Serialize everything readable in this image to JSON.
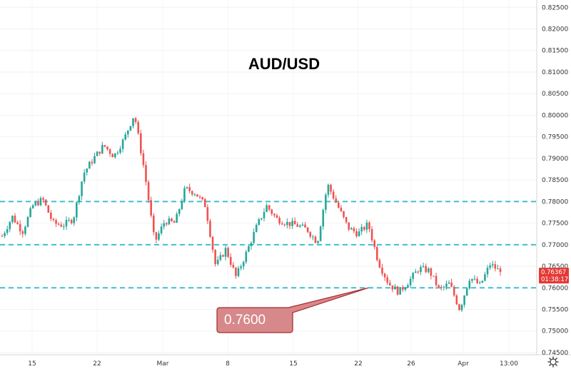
{
  "chart_data": {
    "type": "candlestick",
    "title": "AUD/USD",
    "ylim": [
      0.7445,
      0.8267
    ],
    "y_ticks": [
      "0.82500",
      "0.82000",
      "0.81500",
      "0.81000",
      "0.80500",
      "0.80000",
      "0.79500",
      "0.79000",
      "0.78500",
      "0.78000",
      "0.77500",
      "0.77000",
      "0.76500",
      "0.76000",
      "0.75500",
      "0.75000",
      "0.74500"
    ],
    "x_ticks": [
      "15",
      "22",
      "Mar",
      "8",
      "15",
      "22",
      "26",
      "Apr",
      "13:00"
    ],
    "horizontal_lines": [
      0.78,
      0.77,
      0.76
    ],
    "callout": {
      "text": "0.7600",
      "value": 0.76
    },
    "last_price": {
      "value": "0.76367",
      "countdown": "01:38:17"
    },
    "price_path": [
      {
        "t": "Feb 12",
        "price": 0.772
      },
      {
        "t": "Feb 13",
        "price": 0.7765
      },
      {
        "t": "Feb 15",
        "price": 0.773
      },
      {
        "t": "Feb 16",
        "price": 0.779
      },
      {
        "t": "Feb 17",
        "price": 0.7805
      },
      {
        "t": "Feb 18",
        "price": 0.775
      },
      {
        "t": "Feb 19",
        "price": 0.7745
      },
      {
        "t": "Feb 20",
        "price": 0.776
      },
      {
        "t": "Feb 21",
        "price": 0.7865
      },
      {
        "t": "Feb 22",
        "price": 0.79
      },
      {
        "t": "Feb 23",
        "price": 0.793
      },
      {
        "t": "Feb 24",
        "price": 0.7905
      },
      {
        "t": "Feb 25",
        "price": 0.7945
      },
      {
        "t": "Feb 26",
        "price": 0.8003
      },
      {
        "t": "Feb 27",
        "price": 0.787
      },
      {
        "t": "Feb 28",
        "price": 0.7705
      },
      {
        "t": "Mar 2",
        "price": 0.7755
      },
      {
        "t": "Mar 3",
        "price": 0.775
      },
      {
        "t": "Mar 4",
        "price": 0.783
      },
      {
        "t": "Mar 5",
        "price": 0.782
      },
      {
        "t": "Mar 6",
        "price": 0.779
      },
      {
        "t": "Mar 7",
        "price": 0.765
      },
      {
        "t": "Mar 8",
        "price": 0.769
      },
      {
        "t": "Mar 9",
        "price": 0.7625
      },
      {
        "t": "Mar 10",
        "price": 0.768
      },
      {
        "t": "Mar 11",
        "price": 0.774
      },
      {
        "t": "Mar 12",
        "price": 0.779
      },
      {
        "t": "Mar 13",
        "price": 0.776
      },
      {
        "t": "Mar 14",
        "price": 0.775
      },
      {
        "t": "Mar 15",
        "price": 0.7745
      },
      {
        "t": "Mar 16",
        "price": 0.7735
      },
      {
        "t": "Mar 17",
        "price": 0.7705
      },
      {
        "t": "Mar 18",
        "price": 0.784
      },
      {
        "t": "Mar 19",
        "price": 0.779
      },
      {
        "t": "Mar 20",
        "price": 0.774
      },
      {
        "t": "Mar 21",
        "price": 0.7725
      },
      {
        "t": "Mar 22",
        "price": 0.7748
      },
      {
        "t": "Mar 23",
        "price": 0.766
      },
      {
        "t": "Mar 24",
        "price": 0.761
      },
      {
        "t": "Mar 25",
        "price": 0.759
      },
      {
        "t": "Mar 26",
        "price": 0.7615
      },
      {
        "t": "Mar 27",
        "price": 0.7645
      },
      {
        "t": "Mar 28",
        "price": 0.764
      },
      {
        "t": "Mar 29",
        "price": 0.7595
      },
      {
        "t": "Mar 30",
        "price": 0.761
      },
      {
        "t": "Mar 31",
        "price": 0.755
      },
      {
        "t": "Apr 1",
        "price": 0.7625
      },
      {
        "t": "Apr 2",
        "price": 0.7605
      },
      {
        "t": "Apr 3",
        "price": 0.7655
      },
      {
        "t": "Apr 4",
        "price": 0.7637
      }
    ]
  },
  "colors": {
    "up": "#26a69a",
    "down": "#ef5350",
    "level_line": "#3cc0d0",
    "callout_fill": "#d7888a",
    "callout_stroke": "#a82a2e",
    "price_label_bg": "#e53935"
  },
  "icons": {
    "settings": "gear-icon"
  }
}
